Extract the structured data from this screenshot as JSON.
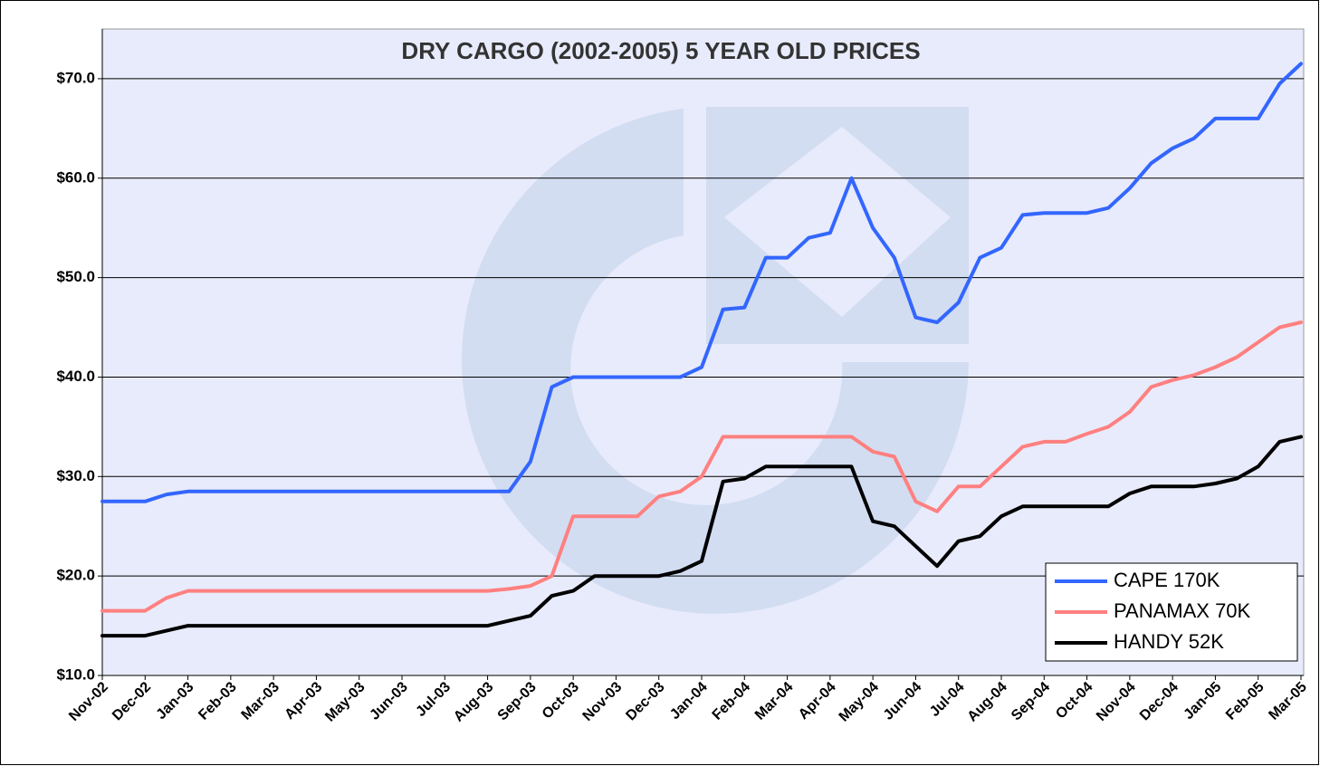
{
  "chart_data": {
    "type": "line",
    "title": "DRY CARGO (2002-2005) 5 YEAR OLD PRICES",
    "categories": [
      "Nov-02",
      null,
      "Dec-02",
      null,
      "Jan-03",
      null,
      "Feb-03",
      null,
      "Mar-03",
      null,
      "Apr-03",
      null,
      "May-03",
      null,
      "Jun-03",
      null,
      "Jul-03",
      null,
      "Aug-03",
      null,
      "Sep-03",
      null,
      "Oct-03",
      null,
      "Nov-03",
      null,
      "Dec-03",
      null,
      "Jan-04",
      null,
      "Feb-04",
      null,
      "Mar-04",
      null,
      "Apr-04",
      null,
      "May-04",
      null,
      "Jun-04",
      null,
      "Jul-04",
      null,
      "Aug-04",
      null,
      "Sep-04",
      null,
      "Oct-04",
      null,
      "Nov-04",
      null,
      "Dec-04",
      null,
      "Jan-05",
      null,
      "Feb-05",
      null,
      "Mar-05"
    ],
    "series": [
      {
        "name": "CAPE 170K",
        "color": "#3366ff",
        "values": [
          27.5,
          27.5,
          27.5,
          28.2,
          28.5,
          28.5,
          28.5,
          28.5,
          28.5,
          28.5,
          28.5,
          28.5,
          28.5,
          28.5,
          28.5,
          28.5,
          28.5,
          28.5,
          28.5,
          28.5,
          31.5,
          39,
          40,
          40,
          40,
          40,
          40,
          40,
          41,
          46.8,
          47,
          52,
          52,
          54,
          54.5,
          60,
          55,
          52,
          46,
          45.5,
          47.5,
          52,
          53,
          56.3,
          56.5,
          56.5,
          56.5,
          57,
          59,
          61.5,
          63,
          64,
          66,
          66,
          66,
          69.5,
          71.5
        ]
      },
      {
        "name": "PANAMAX 70K",
        "color": "#ff8080",
        "values": [
          16.5,
          16.5,
          16.5,
          17.8,
          18.5,
          18.5,
          18.5,
          18.5,
          18.5,
          18.5,
          18.5,
          18.5,
          18.5,
          18.5,
          18.5,
          18.5,
          18.5,
          18.5,
          18.5,
          18.7,
          19,
          20,
          26,
          26,
          26,
          26,
          28,
          28.5,
          30,
          34,
          34,
          34,
          34,
          34,
          34,
          34,
          32.5,
          32,
          27.5,
          26.5,
          29,
          29,
          31,
          33,
          33.5,
          33.5,
          34.3,
          35,
          36.5,
          39,
          39.7,
          40.2,
          41,
          42,
          43.5,
          45,
          45.5
        ]
      },
      {
        "name": "HANDY 52K",
        "color": "#000000",
        "values": [
          14,
          14,
          14,
          14.5,
          15,
          15,
          15,
          15,
          15,
          15,
          15,
          15,
          15,
          15,
          15,
          15,
          15,
          15,
          15,
          15.5,
          16,
          18,
          18.5,
          20,
          20,
          20,
          20,
          20.5,
          21.5,
          29.5,
          29.8,
          31,
          31,
          31,
          31,
          31,
          25.5,
          25,
          23,
          21,
          23.5,
          24,
          26,
          27,
          27,
          27,
          27,
          27,
          28.3,
          29,
          29,
          29,
          29.3,
          29.8,
          31,
          33.5,
          34
        ]
      }
    ],
    "ylim": [
      10,
      75
    ],
    "yticks": [
      {
        "value": 10,
        "label": "$10.0"
      },
      {
        "value": 20,
        "label": "$20.0"
      },
      {
        "value": 30,
        "label": "$30.0"
      },
      {
        "value": 40,
        "label": "$40.0"
      },
      {
        "value": 50,
        "label": "$50.0"
      },
      {
        "value": 60,
        "label": "$60.0"
      },
      {
        "value": 70,
        "label": "$70.0"
      }
    ],
    "grid": true,
    "legend": "lower right"
  }
}
